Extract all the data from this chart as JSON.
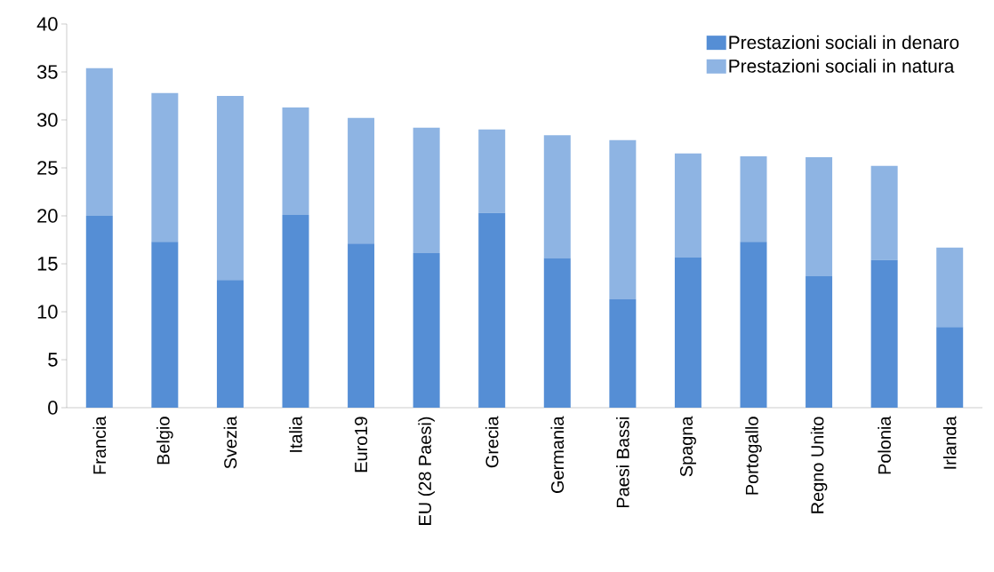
{
  "chart_data": {
    "type": "bar",
    "stacked": true,
    "categories": [
      "Francia",
      "Belgio",
      "Svezia",
      "Italia",
      "Euro19",
      "EU (28 Paesi)",
      "Grecia",
      "Germania",
      "Paesi Bassi",
      "Spagna",
      "Portogallo",
      "Regno Unito",
      "Polonia",
      "Irlanda"
    ],
    "series": [
      {
        "name": "Prestazioni sociali in denaro",
        "color": "#558ed5",
        "values": [
          20.0,
          17.3,
          13.3,
          20.1,
          17.1,
          16.1,
          20.3,
          15.6,
          11.3,
          15.7,
          17.3,
          13.7,
          15.4,
          8.4
        ]
      },
      {
        "name": "Prestazioni sociali in natura",
        "color": "#8eb4e3",
        "values": [
          15.4,
          15.5,
          19.2,
          11.2,
          13.1,
          13.1,
          8.7,
          12.8,
          16.6,
          10.8,
          8.9,
          12.4,
          9.8,
          8.3
        ]
      }
    ],
    "ylim": [
      0,
      40
    ],
    "yticks": [
      0,
      5,
      10,
      15,
      20,
      25,
      30,
      35,
      40
    ],
    "grid": false,
    "legend": "top right"
  }
}
